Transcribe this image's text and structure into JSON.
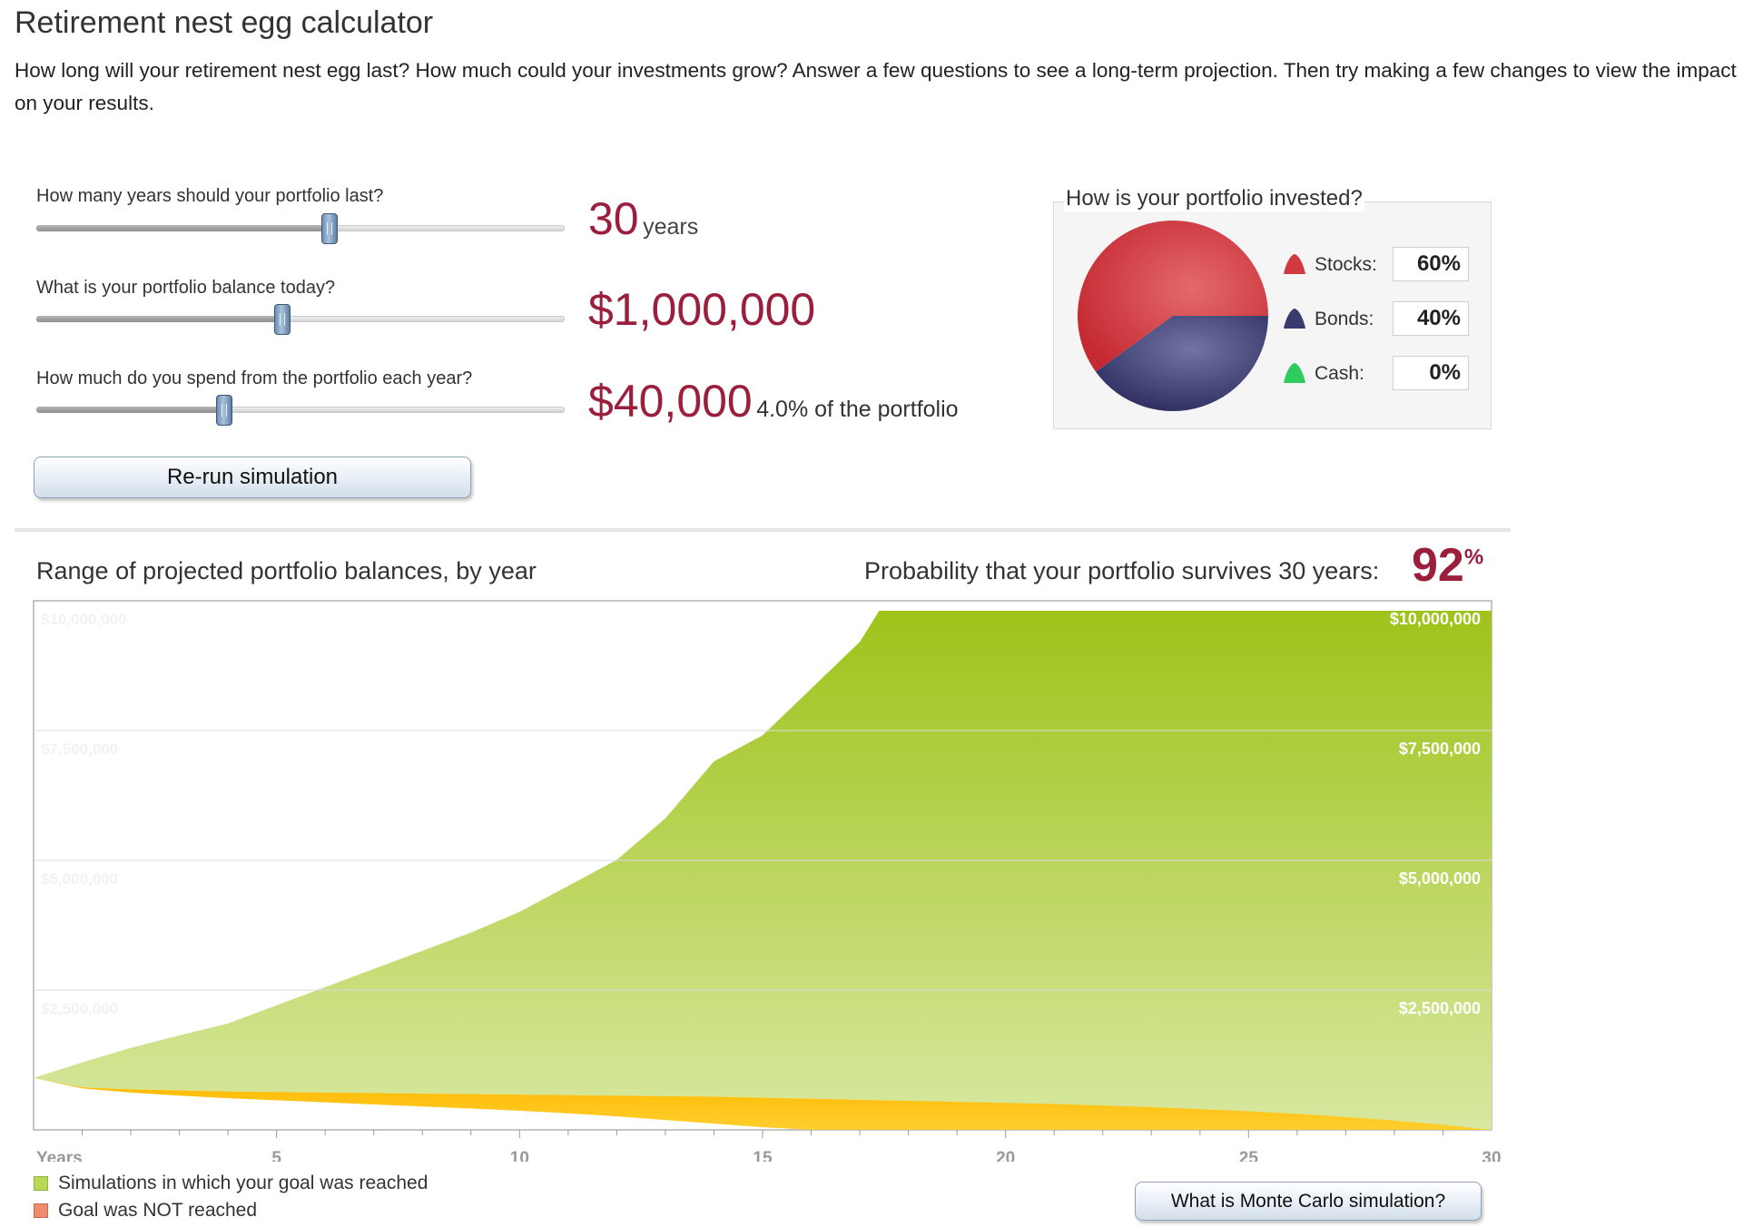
{
  "page": {
    "title": "Retirement nest egg calculator",
    "intro": "How long will your retirement nest egg last? How much could your investments grow? Answer a few questions to see a long-term projection. Then try making a few changes to view the impact on your results."
  },
  "inputs": {
    "years": {
      "label": "How many years should your portfolio last?",
      "value": "30",
      "unit": "years",
      "slider_fraction": 0.555
    },
    "balance": {
      "label": "What is your portfolio balance today?",
      "value": "$1,000,000",
      "slider_fraction": 0.465
    },
    "spend": {
      "label": "How much do you spend from the portfolio each year?",
      "value": "$40,000",
      "note": "4.0% of the portfolio",
      "slider_fraction": 0.355
    }
  },
  "rerun_button": "Re-run simulation",
  "allocation": {
    "title": "How is your portfolio invested?",
    "items": [
      {
        "label": "Stocks:",
        "value": "60%",
        "color": "#d0393d",
        "percent": 60
      },
      {
        "label": "Bonds:",
        "value": "40%",
        "color": "#3a3a6e",
        "percent": 40
      },
      {
        "label": "Cash:",
        "value": "0%",
        "color": "#2ecc5c",
        "percent": 0
      }
    ]
  },
  "results": {
    "chart_title": "Range of projected portfolio balances, by year",
    "probability_label": "Probability that your portfolio survives 30 years:",
    "probability_value": "92",
    "probability_unit": "%"
  },
  "legend": [
    {
      "label": "Simulations in which your goal was reached",
      "color": "#b9d957"
    },
    {
      "label": "Goal was NOT reached",
      "color": "#f08a6a"
    }
  ],
  "monte_carlo_button": "What is Monte Carlo simulation?",
  "chart_data": {
    "type": "area",
    "xlabel": "Years",
    "x_ticks": [
      "5",
      "10",
      "15",
      "20",
      "25",
      "30"
    ],
    "y_tick_labels": [
      "$10,000,000",
      "$7,500,000",
      "$5,000,000",
      "$2,500,000"
    ],
    "y_ticks": [
      10000000,
      7500000,
      5000000,
      2500000
    ],
    "xlim": [
      0,
      30
    ],
    "ylim": [
      0,
      10000000
    ],
    "grid": true,
    "series": [
      {
        "name": "Simulations in which your goal was reached",
        "color": "#a2c51d",
        "x": [
          0,
          1,
          2,
          3,
          4,
          5,
          6,
          7,
          8,
          9,
          10,
          11,
          12,
          13,
          14,
          15,
          16,
          17,
          17.4,
          30
        ],
        "upper": [
          1000000,
          1300000,
          1580000,
          1820000,
          2050000,
          2400000,
          2750000,
          3100000,
          3450000,
          3800000,
          4200000,
          4700000,
          5200000,
          6000000,
          7100000,
          7600000,
          8500000,
          9400000,
          10000000,
          10000000
        ],
        "lower": [
          1000000,
          820000,
          780000,
          760000,
          740000,
          730000,
          720000,
          710000,
          700000,
          690000,
          680000,
          670000,
          660000,
          650000,
          640000,
          620000,
          600000,
          580000,
          570000,
          0
        ]
      },
      {
        "name": "Goal was NOT reached",
        "color": "#ffc400",
        "x": [
          0,
          1,
          2,
          3,
          4,
          5,
          6,
          7,
          8,
          9,
          10,
          11,
          12,
          13,
          14,
          15,
          16,
          17,
          18,
          19,
          20,
          21,
          22,
          23,
          24,
          25,
          26,
          27,
          28,
          29,
          30
        ],
        "upper": [
          1000000,
          820000,
          780000,
          760000,
          740000,
          730000,
          720000,
          710000,
          700000,
          690000,
          680000,
          670000,
          660000,
          650000,
          640000,
          620000,
          600000,
          580000,
          560000,
          540000,
          520000,
          500000,
          470000,
          440000,
          400000,
          360000,
          310000,
          250000,
          180000,
          100000,
          0
        ],
        "lower": [
          1000000,
          800000,
          720000,
          660000,
          610000,
          570000,
          530000,
          490000,
          450000,
          410000,
          370000,
          320000,
          260000,
          190000,
          120000,
          50000,
          0,
          0,
          0,
          0,
          0,
          0,
          0,
          0,
          0,
          0,
          0,
          0,
          0,
          0,
          0
        ]
      }
    ]
  }
}
